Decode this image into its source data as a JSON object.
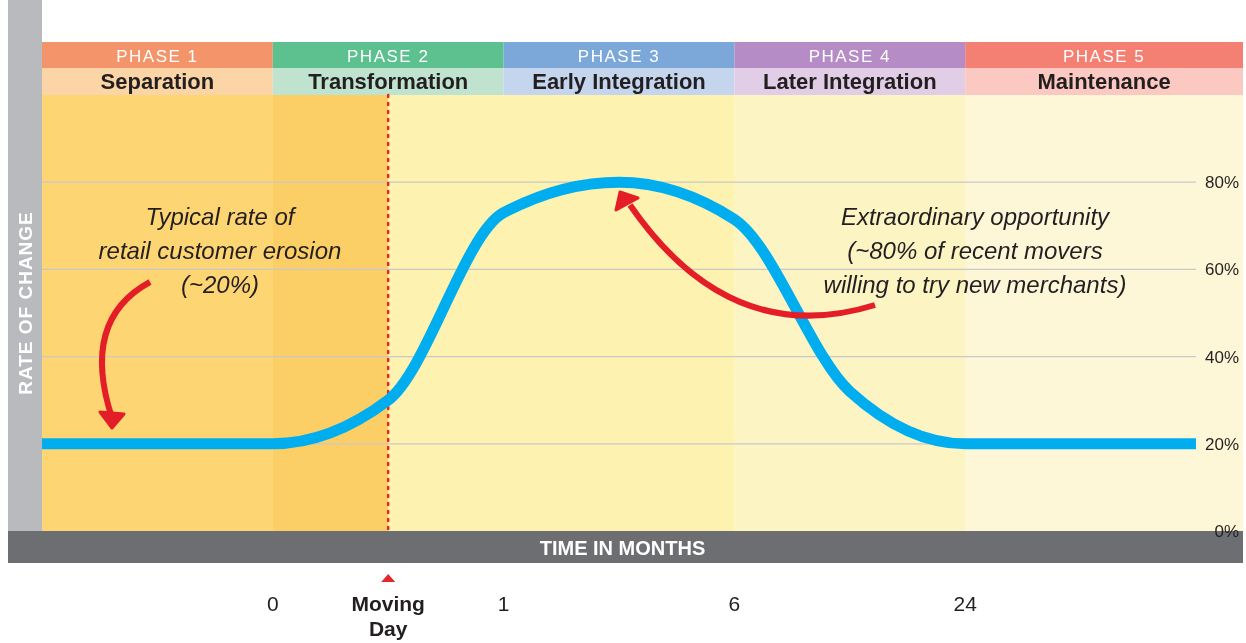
{
  "chart_data": {
    "type": "line",
    "xlabel": "TIME IN MONTHS",
    "ylabel": "RATE OF CHANGE",
    "categories": [
      null,
      null,
      "0",
      "Moving Day",
      "1",
      null,
      "6",
      null,
      "24",
      null,
      null
    ],
    "series": [
      {
        "color": "#00aeef",
        "values": [
          20,
          20,
          20,
          30,
          73,
          80,
          71.5,
          32,
          20,
          20,
          20
        ]
      }
    ],
    "ylim": [
      0,
      100
    ],
    "yticks": [
      {
        "value": 0,
        "label": "0%"
      },
      {
        "value": 20,
        "label": "20%"
      },
      {
        "value": 40,
        "label": "40%"
      },
      {
        "value": 60,
        "label": "60%"
      },
      {
        "value": 80,
        "label": "80%"
      }
    ],
    "grid": "y",
    "line_style": "solid",
    "marker": "none",
    "ref_lines": [
      {
        "axis": "x",
        "value": "Moving Day",
        "color": "#e0282e",
        "line_style": "dotted"
      }
    ],
    "annotations": [
      "PHASE 1",
      "Separation",
      "PHASE 2",
      "Transformation",
      "PHASE 3",
      "Early Integration",
      "PHASE 4",
      "Later Integration",
      "PHASE 5",
      "Maintenance",
      "Typical rate of\nretail customer erosion\n(~20%)",
      "Extraordinary opportunity\n(~80% of recent movers\nwilling to try new merchants)"
    ]
  }
}
